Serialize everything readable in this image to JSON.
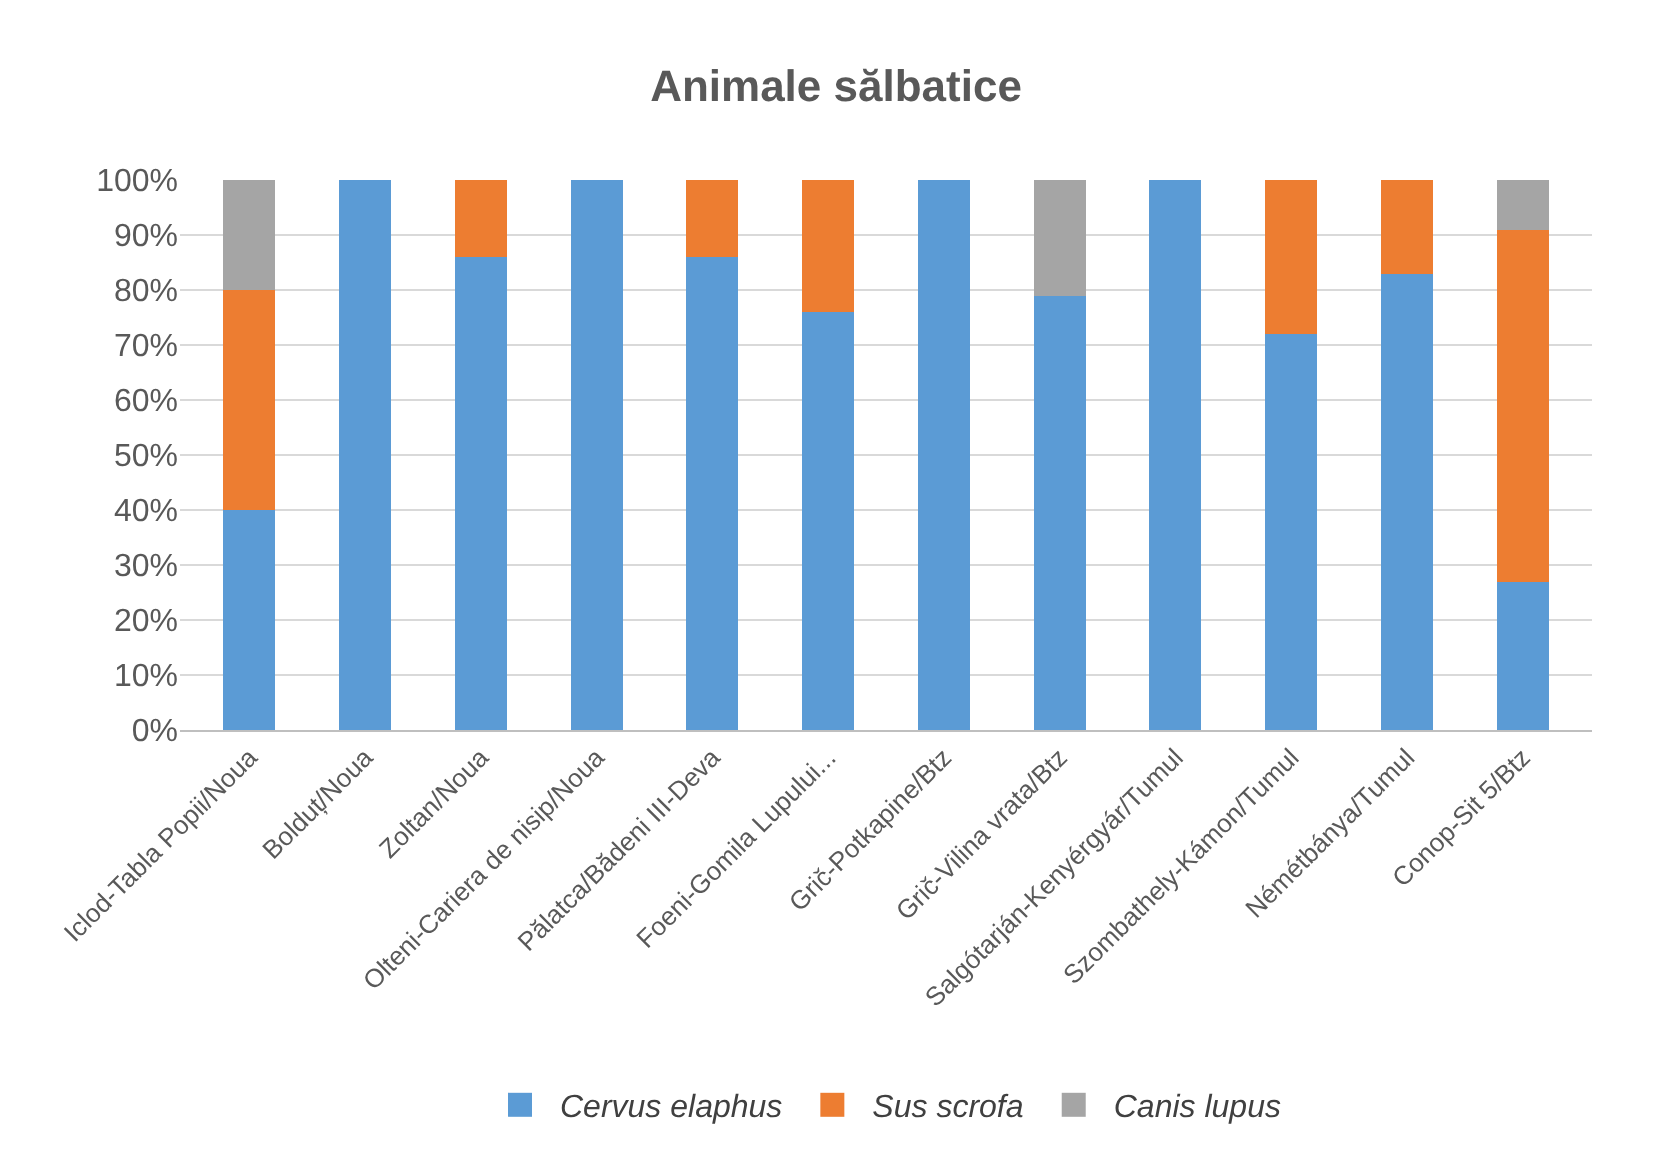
{
  "chart_data": {
    "type": "bar",
    "title": "Animale sălbatice",
    "stacked": true,
    "categories": [
      "Iclod-Tabla Popii/Noua",
      "Bolduț/Noua",
      "Zoltan/Noua",
      "Olteni-Cariera de nisip/Noua",
      "Pălatca/Bădeni III-Deva",
      "Foeni-Gomila Lupului...",
      "Grič-Potkapine/Btz",
      "Grič-Vilina vrata/Btz",
      "Salgótarján-Kenyérgyár/Tumul",
      "Szombathely-Kámon/Tumul",
      "Némétbánya/Tumul",
      "Conop-Sit 5/Btz"
    ],
    "series": [
      {
        "name": "Cervus elaphus",
        "color": "#5b9bd5",
        "values": [
          40,
          100,
          86,
          100,
          86,
          76,
          100,
          79,
          100,
          72,
          83,
          27
        ]
      },
      {
        "name": "Sus scrofa",
        "color": "#ed7d31",
        "values": [
          40,
          0,
          14,
          0,
          14,
          24,
          0,
          0,
          0,
          28,
          17,
          64
        ]
      },
      {
        "name": "Canis lupus",
        "color": "#a5a5a5",
        "values": [
          20,
          0,
          0,
          0,
          0,
          0,
          0,
          21,
          0,
          0,
          0,
          9
        ]
      }
    ],
    "ylim": [
      0,
      100
    ],
    "yticks": [
      {
        "value": 0,
        "label": "0%"
      },
      {
        "value": 10,
        "label": "10%"
      },
      {
        "value": 20,
        "label": "20%"
      },
      {
        "value": 30,
        "label": "30%"
      },
      {
        "value": 40,
        "label": "40%"
      },
      {
        "value": 50,
        "label": "50%"
      },
      {
        "value": 60,
        "label": "60%"
      },
      {
        "value": 70,
        "label": "70%"
      },
      {
        "value": 80,
        "label": "80%"
      },
      {
        "value": 90,
        "label": "90%"
      },
      {
        "value": 100,
        "label": "100%"
      }
    ],
    "grid": "y",
    "legend": "bottom"
  }
}
